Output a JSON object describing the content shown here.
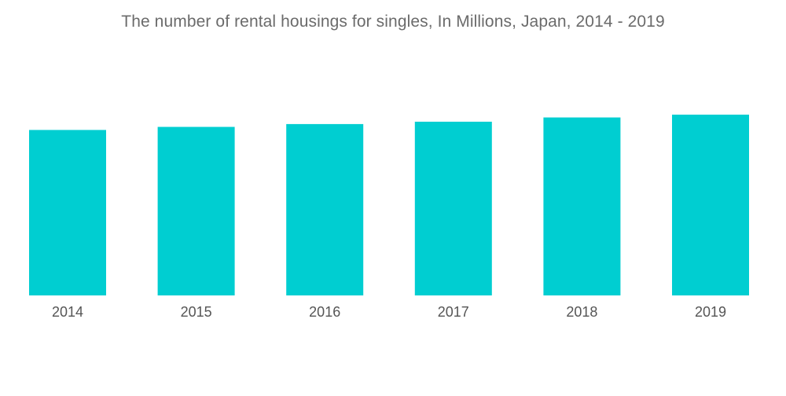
{
  "chart_data": {
    "type": "bar",
    "title": "The number of rental housings for singles, In Millions, Japan, 2014 - 2019",
    "xlabel": "",
    "ylabel": "",
    "categories": [
      "2014",
      "2015",
      "2016",
      "2017",
      "2018",
      "2019"
    ],
    "values": [
      7.02,
      7.15,
      7.27,
      7.37,
      7.55,
      7.67
    ],
    "ylim": [
      0,
      8.2
    ],
    "grid": false,
    "bar_color": "#00ced1"
  }
}
